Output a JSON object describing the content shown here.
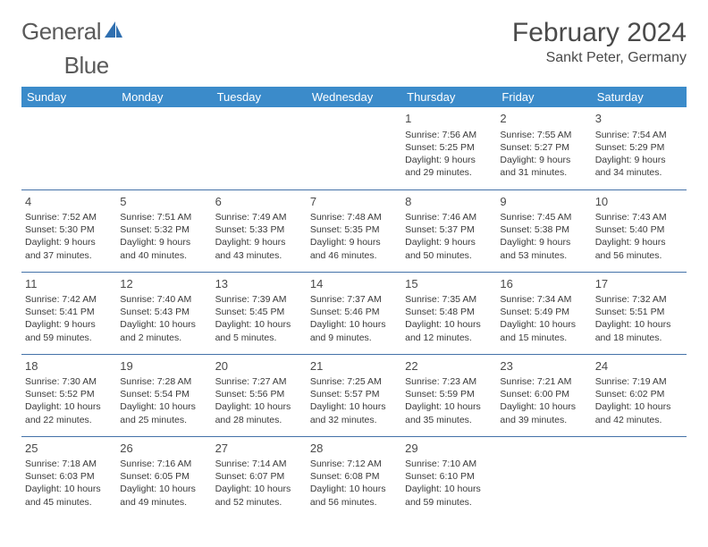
{
  "brand": {
    "part1": "General",
    "part2": "Blue"
  },
  "title": "February 2024",
  "location": "Sankt Peter, Germany",
  "colors": {
    "header_bg": "#3b8bca",
    "header_text": "#ffffff",
    "rule": "#4472a8",
    "text": "#3a3a3a",
    "logo_blue": "#2f6fb0"
  },
  "layout": {
    "columns": 7,
    "rows": 5
  },
  "weekdays": [
    "Sunday",
    "Monday",
    "Tuesday",
    "Wednesday",
    "Thursday",
    "Friday",
    "Saturday"
  ],
  "weeks": [
    [
      null,
      null,
      null,
      null,
      {
        "n": "1",
        "sunrise": "Sunrise: 7:56 AM",
        "sunset": "Sunset: 5:25 PM",
        "daylight": "Daylight: 9 hours and 29 minutes."
      },
      {
        "n": "2",
        "sunrise": "Sunrise: 7:55 AM",
        "sunset": "Sunset: 5:27 PM",
        "daylight": "Daylight: 9 hours and 31 minutes."
      },
      {
        "n": "3",
        "sunrise": "Sunrise: 7:54 AM",
        "sunset": "Sunset: 5:29 PM",
        "daylight": "Daylight: 9 hours and 34 minutes."
      }
    ],
    [
      {
        "n": "4",
        "sunrise": "Sunrise: 7:52 AM",
        "sunset": "Sunset: 5:30 PM",
        "daylight": "Daylight: 9 hours and 37 minutes."
      },
      {
        "n": "5",
        "sunrise": "Sunrise: 7:51 AM",
        "sunset": "Sunset: 5:32 PM",
        "daylight": "Daylight: 9 hours and 40 minutes."
      },
      {
        "n": "6",
        "sunrise": "Sunrise: 7:49 AM",
        "sunset": "Sunset: 5:33 PM",
        "daylight": "Daylight: 9 hours and 43 minutes."
      },
      {
        "n": "7",
        "sunrise": "Sunrise: 7:48 AM",
        "sunset": "Sunset: 5:35 PM",
        "daylight": "Daylight: 9 hours and 46 minutes."
      },
      {
        "n": "8",
        "sunrise": "Sunrise: 7:46 AM",
        "sunset": "Sunset: 5:37 PM",
        "daylight": "Daylight: 9 hours and 50 minutes."
      },
      {
        "n": "9",
        "sunrise": "Sunrise: 7:45 AM",
        "sunset": "Sunset: 5:38 PM",
        "daylight": "Daylight: 9 hours and 53 minutes."
      },
      {
        "n": "10",
        "sunrise": "Sunrise: 7:43 AM",
        "sunset": "Sunset: 5:40 PM",
        "daylight": "Daylight: 9 hours and 56 minutes."
      }
    ],
    [
      {
        "n": "11",
        "sunrise": "Sunrise: 7:42 AM",
        "sunset": "Sunset: 5:41 PM",
        "daylight": "Daylight: 9 hours and 59 minutes."
      },
      {
        "n": "12",
        "sunrise": "Sunrise: 7:40 AM",
        "sunset": "Sunset: 5:43 PM",
        "daylight": "Daylight: 10 hours and 2 minutes."
      },
      {
        "n": "13",
        "sunrise": "Sunrise: 7:39 AM",
        "sunset": "Sunset: 5:45 PM",
        "daylight": "Daylight: 10 hours and 5 minutes."
      },
      {
        "n": "14",
        "sunrise": "Sunrise: 7:37 AM",
        "sunset": "Sunset: 5:46 PM",
        "daylight": "Daylight: 10 hours and 9 minutes."
      },
      {
        "n": "15",
        "sunrise": "Sunrise: 7:35 AM",
        "sunset": "Sunset: 5:48 PM",
        "daylight": "Daylight: 10 hours and 12 minutes."
      },
      {
        "n": "16",
        "sunrise": "Sunrise: 7:34 AM",
        "sunset": "Sunset: 5:49 PM",
        "daylight": "Daylight: 10 hours and 15 minutes."
      },
      {
        "n": "17",
        "sunrise": "Sunrise: 7:32 AM",
        "sunset": "Sunset: 5:51 PM",
        "daylight": "Daylight: 10 hours and 18 minutes."
      }
    ],
    [
      {
        "n": "18",
        "sunrise": "Sunrise: 7:30 AM",
        "sunset": "Sunset: 5:52 PM",
        "daylight": "Daylight: 10 hours and 22 minutes."
      },
      {
        "n": "19",
        "sunrise": "Sunrise: 7:28 AM",
        "sunset": "Sunset: 5:54 PM",
        "daylight": "Daylight: 10 hours and 25 minutes."
      },
      {
        "n": "20",
        "sunrise": "Sunrise: 7:27 AM",
        "sunset": "Sunset: 5:56 PM",
        "daylight": "Daylight: 10 hours and 28 minutes."
      },
      {
        "n": "21",
        "sunrise": "Sunrise: 7:25 AM",
        "sunset": "Sunset: 5:57 PM",
        "daylight": "Daylight: 10 hours and 32 minutes."
      },
      {
        "n": "22",
        "sunrise": "Sunrise: 7:23 AM",
        "sunset": "Sunset: 5:59 PM",
        "daylight": "Daylight: 10 hours and 35 minutes."
      },
      {
        "n": "23",
        "sunrise": "Sunrise: 7:21 AM",
        "sunset": "Sunset: 6:00 PM",
        "daylight": "Daylight: 10 hours and 39 minutes."
      },
      {
        "n": "24",
        "sunrise": "Sunrise: 7:19 AM",
        "sunset": "Sunset: 6:02 PM",
        "daylight": "Daylight: 10 hours and 42 minutes."
      }
    ],
    [
      {
        "n": "25",
        "sunrise": "Sunrise: 7:18 AM",
        "sunset": "Sunset: 6:03 PM",
        "daylight": "Daylight: 10 hours and 45 minutes."
      },
      {
        "n": "26",
        "sunrise": "Sunrise: 7:16 AM",
        "sunset": "Sunset: 6:05 PM",
        "daylight": "Daylight: 10 hours and 49 minutes."
      },
      {
        "n": "27",
        "sunrise": "Sunrise: 7:14 AM",
        "sunset": "Sunset: 6:07 PM",
        "daylight": "Daylight: 10 hours and 52 minutes."
      },
      {
        "n": "28",
        "sunrise": "Sunrise: 7:12 AM",
        "sunset": "Sunset: 6:08 PM",
        "daylight": "Daylight: 10 hours and 56 minutes."
      },
      {
        "n": "29",
        "sunrise": "Sunrise: 7:10 AM",
        "sunset": "Sunset: 6:10 PM",
        "daylight": "Daylight: 10 hours and 59 minutes."
      },
      null,
      null
    ]
  ]
}
